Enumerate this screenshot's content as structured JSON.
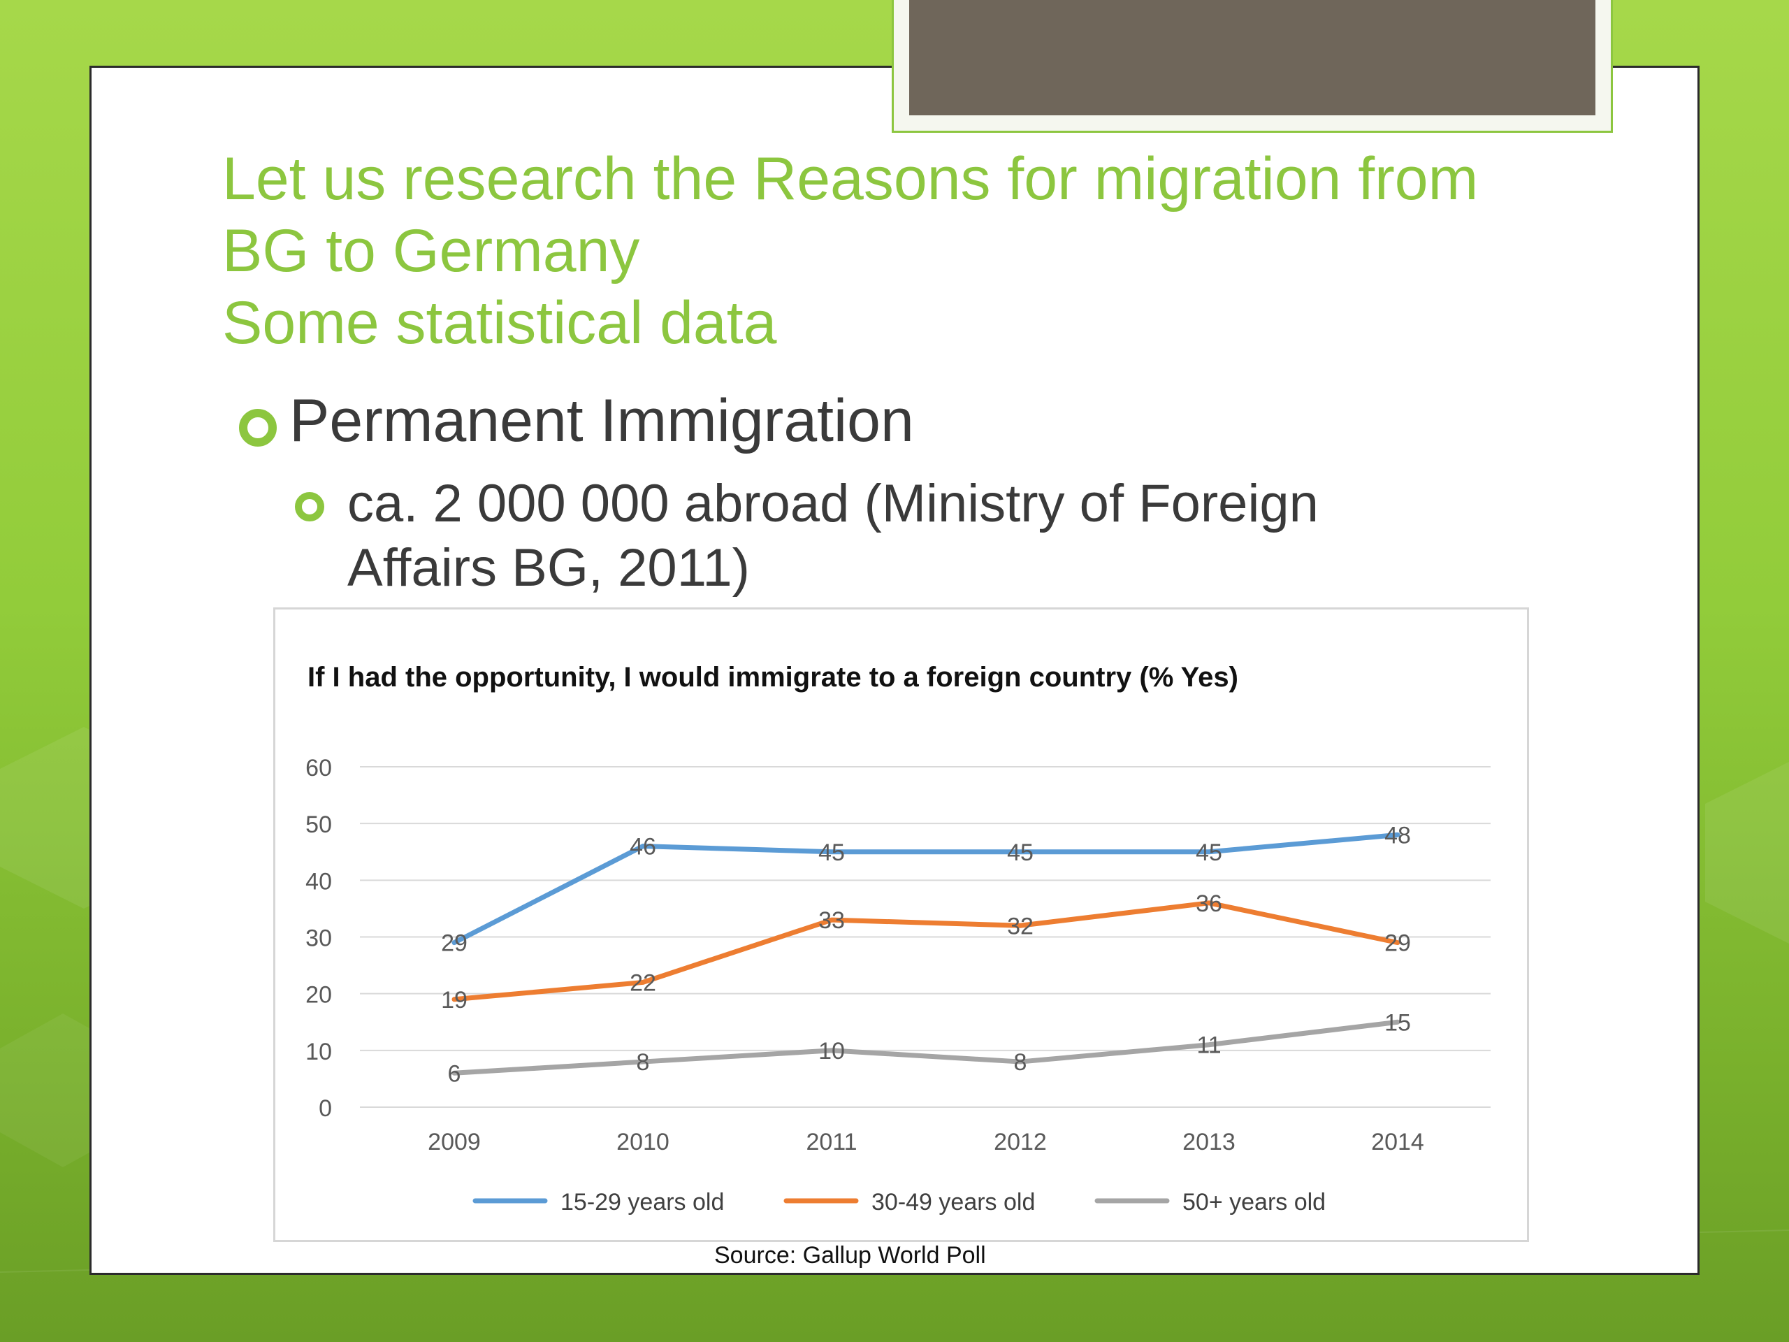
{
  "slide": {
    "title_lines": [
      "Let us research the Reasons for migration from",
      "BG to Germany",
      "Some statistical data"
    ],
    "bullet1": "Permanent Immigration",
    "bullet2": "ca. 2 000 000 abroad (Ministry of Foreign Affairs BG, 2011)",
    "source": "Source: Gallup World Poll"
  },
  "colors": {
    "accent": "#8cc63f",
    "series1": "#5b9bd5",
    "series2": "#ed7d31",
    "series3": "#a5a5a5"
  },
  "chart_data": {
    "type": "line",
    "title": "If I had the opportunity, I would immigrate to a foreign country (% Yes)",
    "x": [
      "2009",
      "2010",
      "2011",
      "2012",
      "2013",
      "2014"
    ],
    "series": [
      {
        "name": "15-29 years old",
        "values": [
          29,
          46,
          45,
          45,
          45,
          48
        ]
      },
      {
        "name": "30-49 years old",
        "values": [
          19,
          22,
          33,
          32,
          36,
          29
        ]
      },
      {
        "name": "50+ years old",
        "values": [
          6,
          8,
          10,
          8,
          11,
          15
        ]
      }
    ],
    "ylim": [
      0,
      60
    ],
    "yticks": [
      0,
      10,
      20,
      30,
      40,
      50,
      60
    ],
    "grid": true,
    "legend": "bottom",
    "xlabel": "",
    "ylabel": ""
  }
}
